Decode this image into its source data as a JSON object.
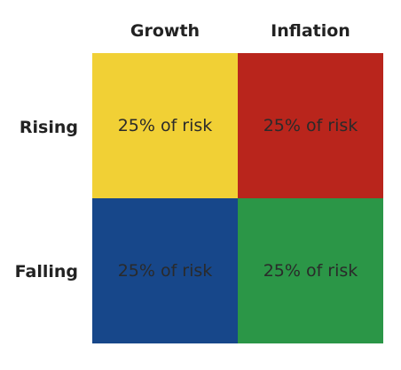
{
  "columns": [
    "Growth",
    "Inflation"
  ],
  "rows": [
    "Rising",
    "Falling"
  ],
  "cells": [
    [
      {
        "text": "25% of risk",
        "color": "#f1d035"
      },
      {
        "text": "25% of risk",
        "color": "#b9251c"
      }
    ],
    [
      {
        "text": "25% of risk",
        "color": "#17478a"
      },
      {
        "text": "25% of risk",
        "color": "#2b9647"
      }
    ]
  ]
}
